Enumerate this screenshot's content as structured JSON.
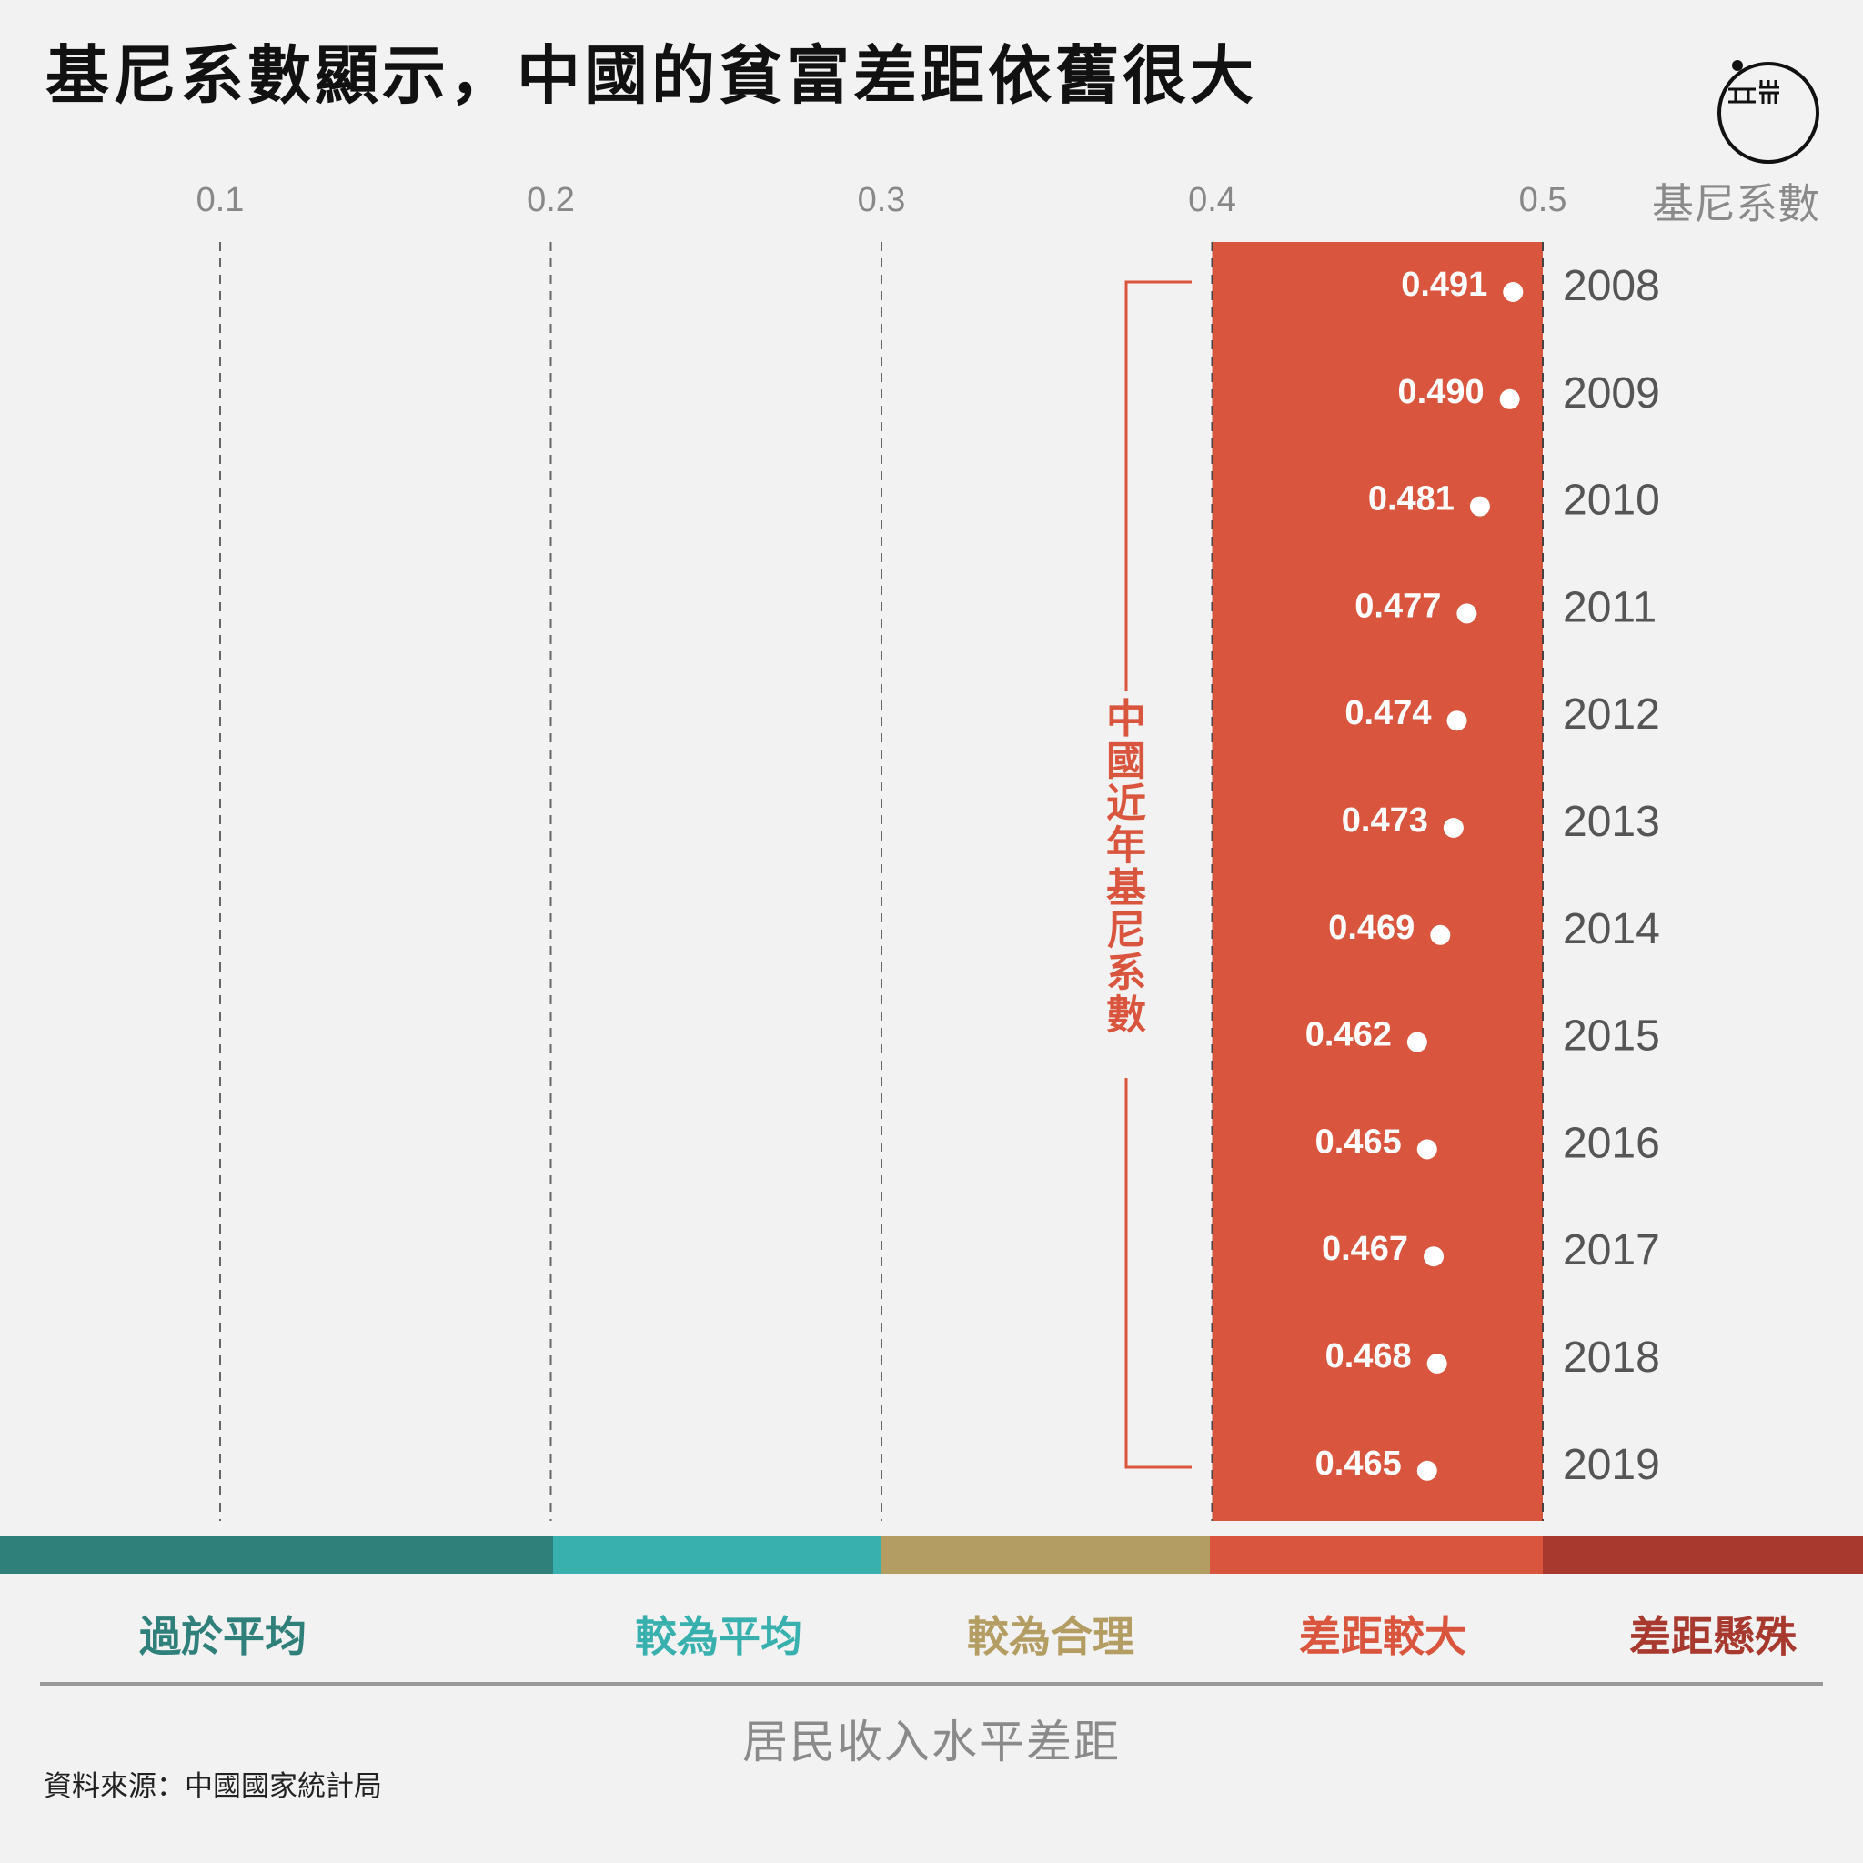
{
  "title": "基尼系數顯示，中國的貧富差距依舊很大",
  "source": "資料來源：中國國家統計局",
  "chart_data": {
    "type": "scatter",
    "x_axis": {
      "label": "基尼系數",
      "ticks": [
        "0.1",
        "0.2",
        "0.3",
        "0.4",
        "0.5"
      ],
      "tick_values": [
        0.1,
        0.2,
        0.3,
        0.4,
        0.5
      ],
      "range": [
        0.1,
        0.5
      ]
    },
    "x_title": "居民收入水平差距",
    "years": [
      "2008",
      "2009",
      "2010",
      "2011",
      "2012",
      "2013",
      "2014",
      "2015",
      "2016",
      "2017",
      "2018",
      "2019"
    ],
    "values": [
      0.491,
      0.49,
      0.481,
      0.477,
      0.474,
      0.473,
      0.469,
      0.462,
      0.465,
      0.467,
      0.468,
      0.465
    ],
    "value_labels": [
      "0.491",
      "0.490",
      "0.481",
      "0.477",
      "0.474",
      "0.473",
      "0.469",
      "0.462",
      "0.465",
      "0.467",
      "0.468",
      "0.465"
    ],
    "highlight_band": {
      "from": 0.4,
      "to": 0.5,
      "color": "#d9553e"
    },
    "bracket_label": "中國近年基尼系數",
    "categories": [
      {
        "label": "過於平均",
        "from": 0.0,
        "to": 0.2,
        "color": "#2f7f7a"
      },
      {
        "label": "較為平均",
        "from": 0.2,
        "to": 0.3,
        "color": "#38b0ae"
      },
      {
        "label": "較為合理",
        "from": 0.3,
        "to": 0.4,
        "color": "#b49d63"
      },
      {
        "label": "差距較大",
        "from": 0.4,
        "to": 0.5,
        "color": "#d9553e"
      },
      {
        "label": "差距懸殊",
        "from": 0.5,
        "to": 0.6,
        "color": "#a8392e"
      }
    ]
  }
}
